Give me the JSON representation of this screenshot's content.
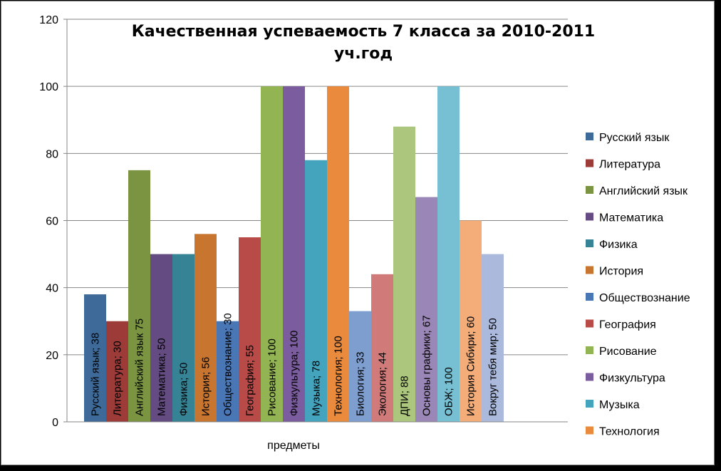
{
  "chart_data": {
    "type": "bar",
    "title_lines": [
      "Качественная успеваемость 7 класса за 2010-2011",
      "уч.год"
    ],
    "xlabel": "предметы",
    "ylabel": "",
    "ylim": [
      0,
      120
    ],
    "yticks": [
      0,
      20,
      40,
      60,
      80,
      100,
      120
    ],
    "grid": true,
    "legend_position": "right",
    "series": [
      {
        "name": "Русский язык",
        "value": 38,
        "label": "Русский язык; 38",
        "color": "#3d6a99"
      },
      {
        "name": "Литература",
        "value": 30,
        "label": "Литература; 30",
        "color": "#9d3b39"
      },
      {
        "name": "Английский язык",
        "value": 75,
        "label": "Английский язык 75",
        "color": "#7a9441"
      },
      {
        "name": "Математика",
        "value": 50,
        "label": "Математика; 50",
        "color": "#644c83"
      },
      {
        "name": "Физика",
        "value": 50,
        "label": "Физика; 50",
        "color": "#368396"
      },
      {
        "name": "История",
        "value": 56,
        "label": "История; 56",
        "color": "#c7752f"
      },
      {
        "name": "Обществознание",
        "value": 30,
        "label": "Обществознание; 30",
        "color": "#4976b5"
      },
      {
        "name": "География",
        "value": 55,
        "label": "География; 55",
        "color": "#b84a47"
      },
      {
        "name": "Рисование",
        "value": 100,
        "label": "Рисование; 100",
        "color": "#93b453"
      },
      {
        "name": "Физкультура",
        "value": 100,
        "label": "Физкультура; 100",
        "color": "#7b5d9f"
      },
      {
        "name": "Музыка",
        "value": 78,
        "label": "Музыка; 78",
        "color": "#44a4be"
      },
      {
        "name": "Технология",
        "value": 100,
        "label": "Технология; 100",
        "color": "#ea8a3c"
      },
      {
        "name": "Биология",
        "value": 33,
        "label": "Биология; 33",
        "color": "#7e9ecf"
      },
      {
        "name": "Экология",
        "value": 44,
        "label": "Экология; 44",
        "color": "#d07b7a"
      },
      {
        "name": "ДПИ",
        "value": 88,
        "label": "ДПИ; 88",
        "color": "#acc67e"
      },
      {
        "name": "Основы графики",
        "value": 67,
        "label": "Основы графики; 67",
        "color": "#9a87b7"
      },
      {
        "name": "ОБЖ",
        "value": 100,
        "label": "ОБЖ; 100",
        "color": "#77bfd3"
      },
      {
        "name": "История Сибири",
        "value": 60,
        "label": "История Сибири; 60",
        "color": "#f4ad78"
      },
      {
        "name": "Вокруг тебя мир",
        "value": 50,
        "label": "Вокруг тебя мир; 50",
        "color": "#aab9dc"
      }
    ],
    "legend_entries": [
      "Русский язык",
      "Литература",
      "Английский язык",
      "Математика",
      "Физика",
      "История",
      "Обществознание",
      "География",
      "Рисование",
      "Физкультура",
      "Музыка",
      "Технология"
    ]
  }
}
